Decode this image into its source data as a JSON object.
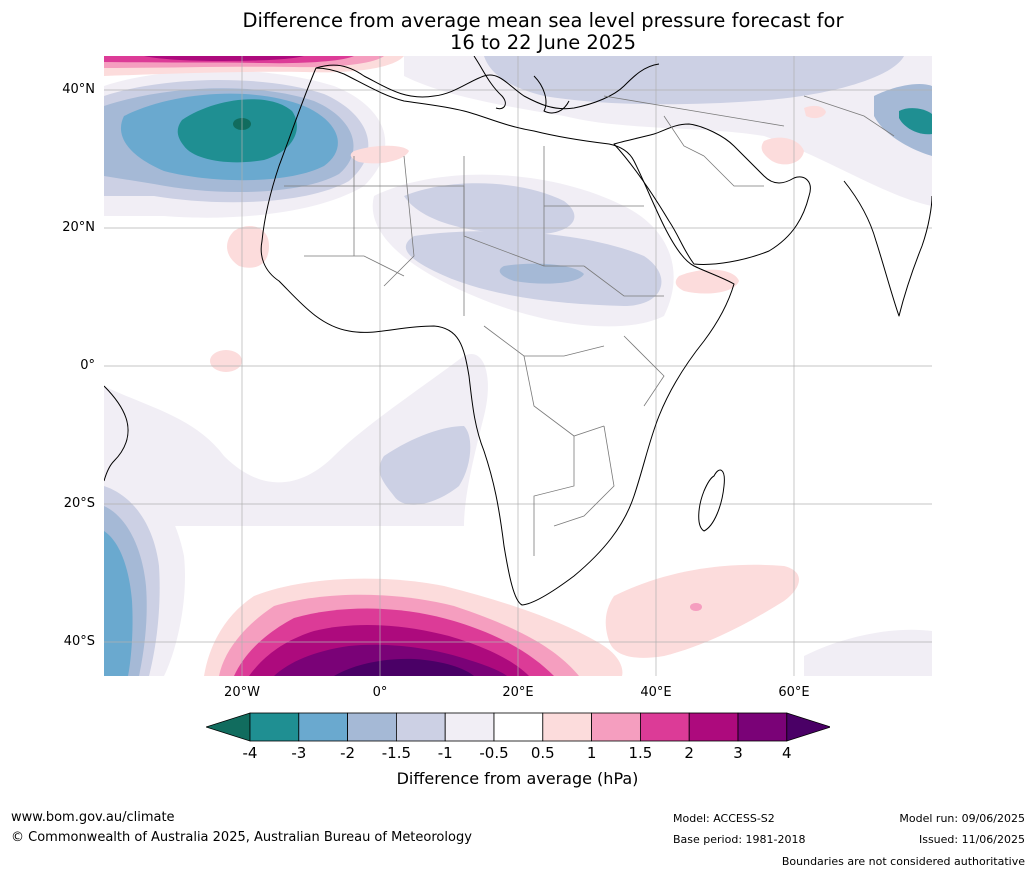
{
  "title": {
    "line1": "Difference from average mean sea level pressure forecast for",
    "line2": "16 to 22 June 2025"
  },
  "map": {
    "region": "Africa",
    "lat_labels": [
      "40°N",
      "20°N",
      "0°",
      "20°S",
      "40°S"
    ],
    "lon_labels": [
      "20°W",
      "0°",
      "20°E",
      "40°E",
      "60°E"
    ]
  },
  "colorbar": {
    "ticks": [
      "-4",
      "-3",
      "-2",
      "-1.5",
      "-1",
      "-0.5",
      "0.5",
      "1",
      "1.5",
      "2",
      "3",
      "4"
    ],
    "colors": {
      "below_-4": "#116c5e",
      "-4_-3": "#1f8f92",
      "-3_-2": "#6aa9cf",
      "-2_-1.5": "#a5b9d6",
      "-1.5_-1": "#ccd0e4",
      "-1_-0.5": "#f1eef5",
      "-0.5_0.5": "#ffffff",
      "0.5_1": "#fcdcdc",
      "1_1.5": "#f59ebf",
      "1.5_2": "#dc3b97",
      "2_3": "#ad0a7d",
      "3_4": "#7a0277",
      "above_4": "#4a0066"
    },
    "label": "Difference from average (hPa)"
  },
  "footer": {
    "website": "www.bom.gov.au/climate",
    "copyright": "© Commonwealth of Australia 2025, Australian Bureau of Meteorology",
    "model": "Model: ACCESS-S2",
    "base_period": "Base period: 1981-2018",
    "model_run": "Model run: 09/06/2025",
    "issued": "Issued: 11/06/2025",
    "disclaimer": "Boundaries are not considered authoritative"
  }
}
